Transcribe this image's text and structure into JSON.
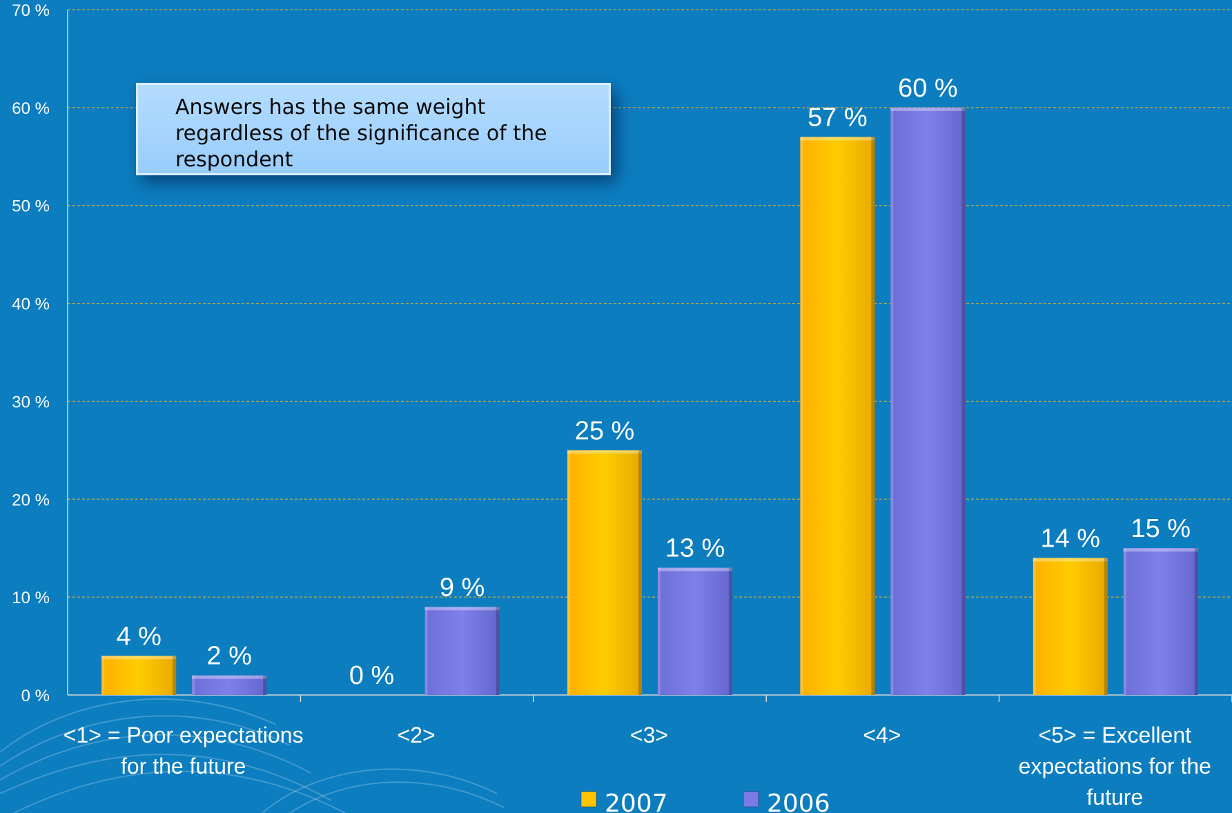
{
  "chart_data": {
    "type": "bar",
    "categories": [
      [
        "<1> = Poor expectations",
        "for the future"
      ],
      [
        "<2>"
      ],
      [
        "<3>"
      ],
      [
        "<4>"
      ],
      [
        "<5> = Excellent",
        "expectations for the",
        "future"
      ]
    ],
    "series": [
      {
        "name": "2007",
        "values": [
          4,
          0,
          25,
          57,
          14
        ],
        "labels": [
          "4 %",
          "0 %",
          "25 %",
          "57 %",
          "14 %"
        ],
        "color": "#ffc400"
      },
      {
        "name": "2006",
        "values": [
          2,
          9,
          13,
          60,
          15
        ],
        "labels": [
          "2 %",
          "9 %",
          "13 %",
          "60 %",
          "15 %"
        ],
        "color": "#7b7be6"
      }
    ],
    "ylim": [
      0,
      70
    ],
    "yticks": [
      "0 %",
      "10 %",
      "20 %",
      "30 %",
      "40 %",
      "50 %",
      "60 %",
      "70 %"
    ],
    "grid": true,
    "legend": "bottom-center"
  },
  "note": {
    "text": "Answers has the same weight regardless of the significance  of the respondent"
  },
  "colors": {
    "background": "#0c7dbf",
    "gridline": "#c9a93a",
    "axis": "#d8d8d8",
    "note_background": "#a6d5ff"
  }
}
